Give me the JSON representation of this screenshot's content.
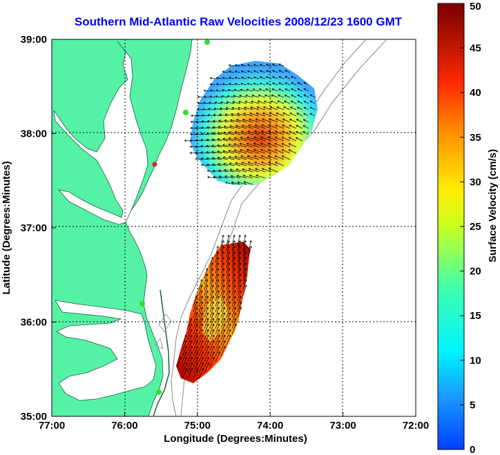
{
  "title": "Southern Mid-Atlantic Raw Velocities 2008/12/23 1600 GMT",
  "x_axis": {
    "label": "Longitude (Degrees:Minutes)",
    "ticks": [
      "77:00",
      "76:00",
      "75:00",
      "74:00",
      "73:00",
      "72:00"
    ]
  },
  "y_axis": {
    "label": "Latitude (Degrees:Minutes)",
    "ticks": [
      "39:00",
      "38:00",
      "37:00",
      "36:00",
      "35:00"
    ]
  },
  "colorbar": {
    "label": "Surface Velocity (cm/s)",
    "ticks": [
      "50",
      "45",
      "40",
      "35",
      "30",
      "25",
      "20",
      "15",
      "10",
      "5",
      "0"
    ],
    "min": 0,
    "max": 50
  },
  "colors": {
    "land": "#55f2a6",
    "title": "#0000ff",
    "station_green": "#33dd33",
    "station_red": "#dd2222"
  }
}
